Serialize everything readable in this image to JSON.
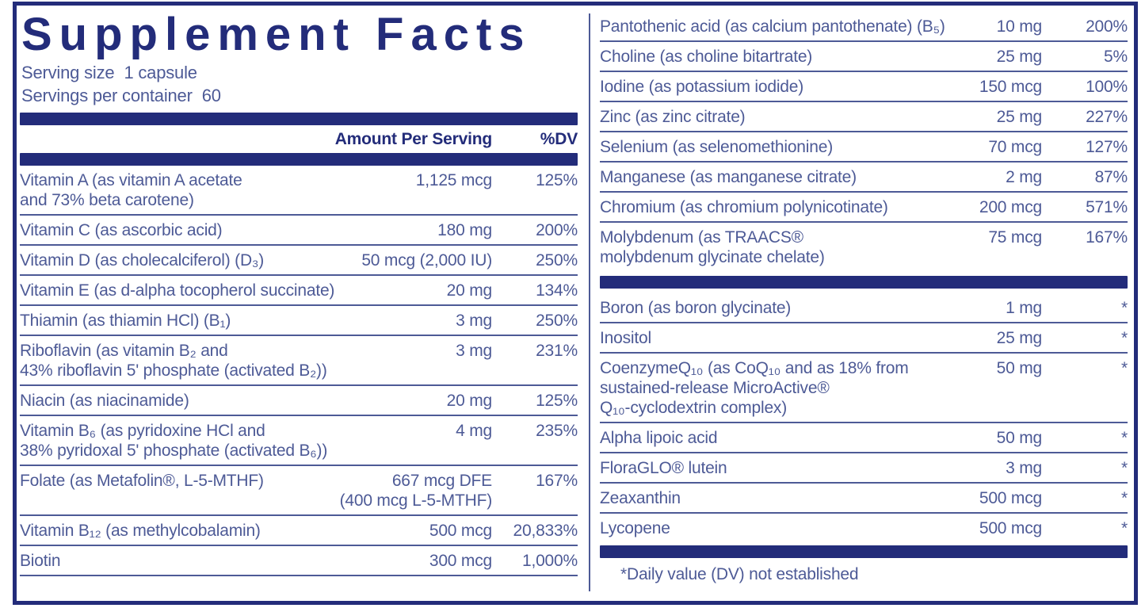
{
  "colors": {
    "navy_accent": "#232c7a",
    "body_text": "#4d5a96",
    "background": "#ffffff"
  },
  "header": {
    "title": "Supplement Facts",
    "serving_size_label": "Serving size",
    "serving_size_value": "1 capsule",
    "servings_label": "Servings per container",
    "servings_value": "60",
    "amount_col": "Amount Per Serving",
    "dv_col": "%DV"
  },
  "rows_left": [
    {
      "name": "Vitamin A (as vitamin A acetate",
      "name2": "and 73% beta carotene)",
      "amount": "1,125 mcg",
      "dv": "125%"
    },
    {
      "name": "Vitamin C (as ascorbic acid)",
      "amount": "180 mg",
      "dv": "200%"
    },
    {
      "name": "Vitamin D (as cholecalciferol) (D₃)",
      "amount": "50 mcg (2,000 IU)",
      "dv": "250%"
    },
    {
      "name": "Vitamin E (as d-alpha tocopherol succinate)",
      "amount": "20 mg",
      "dv": "134%"
    },
    {
      "name": "Thiamin (as thiamin HCl) (B₁)",
      "amount": "3 mg",
      "dv": "250%"
    },
    {
      "name": "Riboflavin (as vitamin B₂ and",
      "name2": "43% riboflavin 5' phosphate (activated B₂))",
      "amount": "3 mg",
      "dv": "231%"
    },
    {
      "name": "Niacin (as niacinamide)",
      "amount": "20 mg",
      "dv": "125%"
    },
    {
      "name": "Vitamin B₆ (as pyridoxine HCl and",
      "name2": "38% pyridoxal 5' phosphate (activated B₆))",
      "amount": "4 mg",
      "dv": "235%"
    },
    {
      "name": "Folate (as Metafolin®, L-5-MTHF)",
      "amount": "667 mcg DFE",
      "amount2": "(400 mcg L-5-MTHF)",
      "dv": "167%"
    },
    {
      "name": "Vitamin B₁₂ (as methylcobalamin)",
      "amount": "500 mcg",
      "dv": "20,833%"
    },
    {
      "name": "Biotin",
      "amount": "300 mcg",
      "dv": "1,000%"
    }
  ],
  "rows_right_a": [
    {
      "name": "Pantothenic acid (as calcium pantothenate) (B₅)",
      "amount": "10 mg",
      "dv": "200%"
    },
    {
      "name": "Choline (as choline bitartrate)",
      "amount": "25 mg",
      "dv": "5%"
    },
    {
      "name": "Iodine (as potassium iodide)",
      "amount": "150 mcg",
      "dv": "100%"
    },
    {
      "name": "Zinc (as zinc citrate)",
      "amount": "25 mg",
      "dv": "227%"
    },
    {
      "name": "Selenium (as selenomethionine)",
      "amount": "70 mcg",
      "dv": "127%"
    },
    {
      "name": "Manganese (as manganese citrate)",
      "amount": "2 mg",
      "dv": "87%"
    },
    {
      "name": "Chromium (as chromium polynicotinate)",
      "amount": "200 mcg",
      "dv": "571%"
    },
    {
      "name": "Molybdenum (as TRAACS®",
      "name2": "molybdenum glycinate chelate)",
      "amount": "75 mcg",
      "dv": "167%"
    }
  ],
  "rows_right_b": [
    {
      "name": "Boron (as boron glycinate)",
      "amount": "1 mg",
      "dv": "*"
    },
    {
      "name": "Inositol",
      "amount": "25 mg",
      "dv": "*"
    },
    {
      "name": "CoenzymeQ₁₀ (as CoQ₁₀ and as 18% from",
      "name2": "sustained-release MicroActive®",
      "name3": "Q₁₀-cyclodextrin complex)",
      "amount": "50 mg",
      "dv": "*"
    },
    {
      "name": "Alpha lipoic acid",
      "amount": "50 mg",
      "dv": "*"
    },
    {
      "name": "FloraGLO® lutein",
      "amount": "3 mg",
      "dv": "*"
    },
    {
      "name": "Zeaxanthin",
      "amount": "500 mcg",
      "dv": "*"
    },
    {
      "name": "Lycopene",
      "amount": "500 mcg",
      "dv": "*"
    }
  ],
  "footnote": "*Daily value (DV) not established"
}
